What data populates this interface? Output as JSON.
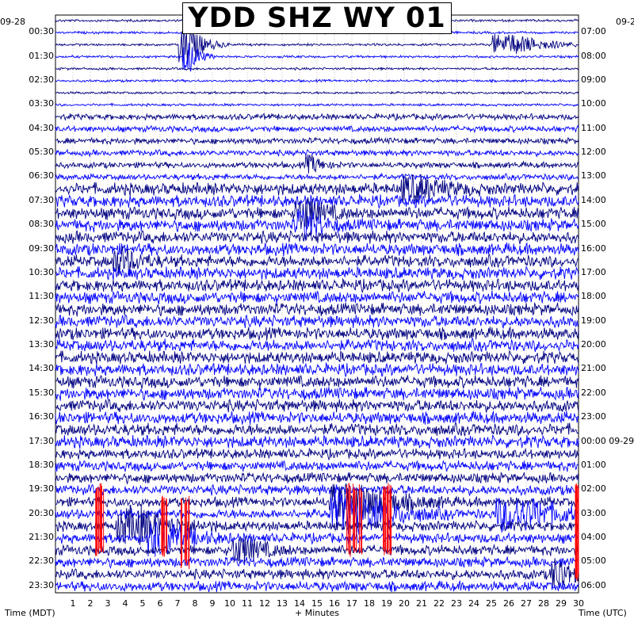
{
  "chart_data": {
    "type": "helicorder",
    "title": "YDD SHZ WY 01",
    "xlabel": "+ Minutes",
    "left_axis_label": "Time (MDT)",
    "right_axis_label": "Time (UTC)",
    "left_date": "09-28",
    "right_date_start": "09-2",
    "right_date_change": "09-29",
    "xlim": [
      0,
      30
    ],
    "x_ticks": [
      1,
      2,
      3,
      4,
      5,
      6,
      7,
      8,
      9,
      10,
      11,
      12,
      13,
      14,
      15,
      16,
      17,
      18,
      19,
      20,
      21,
      22,
      23,
      24,
      25,
      26,
      27,
      28,
      29,
      30
    ],
    "rows_per_hour": 2,
    "row_count": 48,
    "left_tick_labels": [
      "00:30",
      "01:30",
      "02:30",
      "03:30",
      "04:30",
      "05:30",
      "06:30",
      "07:30",
      "08:30",
      "09:30",
      "10:30",
      "11:30",
      "12:30",
      "13:30",
      "14:30",
      "15:30",
      "16:30",
      "17:30",
      "18:30",
      "19:30",
      "20:30",
      "21:30",
      "22:30",
      "23:30"
    ],
    "right_tick_labels": [
      "07:00",
      "08:00",
      "09:00",
      "10:00",
      "11:00",
      "12:00",
      "13:00",
      "14:00",
      "15:00",
      "16:00",
      "17:00",
      "18:00",
      "19:00",
      "20:00",
      "21:00",
      "22:00",
      "23:00",
      "00:00 09-29",
      "01:00",
      "02:00",
      "03:00",
      "04:00",
      "05:00",
      "06:00"
    ],
    "trace_colors": [
      "#000080",
      "#0000ff"
    ],
    "clip_color": "#ff0000",
    "grid": true
  }
}
